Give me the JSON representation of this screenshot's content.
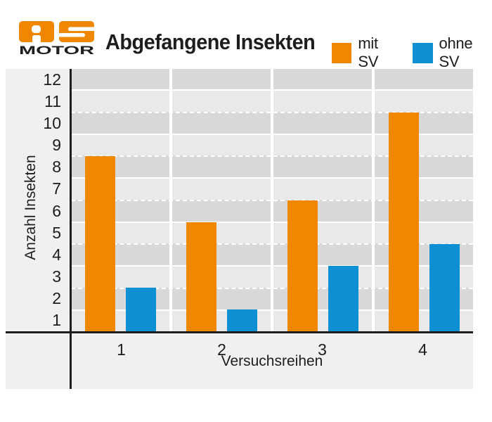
{
  "logo": {
    "line1": "AS",
    "line2": "MOTOR"
  },
  "header": {
    "title": "Abgefangene Insekten"
  },
  "colors": {
    "brand_orange": "#EF8700",
    "series_blue": "#0D90D3",
    "stripe_dark": "#D8D8D8",
    "stripe_light": "#E9E9E9",
    "chart_background": "#F0F0F0",
    "axis_black": "#1D1D1B"
  },
  "chart_data": {
    "type": "bar",
    "title": "Abgefangene Insekten",
    "categories": [
      "1",
      "2",
      "3",
      "4"
    ],
    "series": [
      {
        "name": "mit SV",
        "color": "#EF8700",
        "values": [
          8,
          5,
          6,
          10
        ]
      },
      {
        "name": "ohne SV",
        "color": "#0D90D3",
        "values": [
          2,
          1,
          3,
          4
        ]
      }
    ],
    "xlabel": "Versuchsreihen",
    "ylabel": "Anzahl Insekten",
    "ylim": [
      0,
      12
    ],
    "y_ticks": [
      "12",
      "11",
      "10",
      "9",
      "8",
      "7",
      "6",
      "5",
      "4",
      "3",
      "2",
      "1"
    ],
    "grid": "horizontal-stripes-alternating",
    "legend_position": "top-right"
  }
}
